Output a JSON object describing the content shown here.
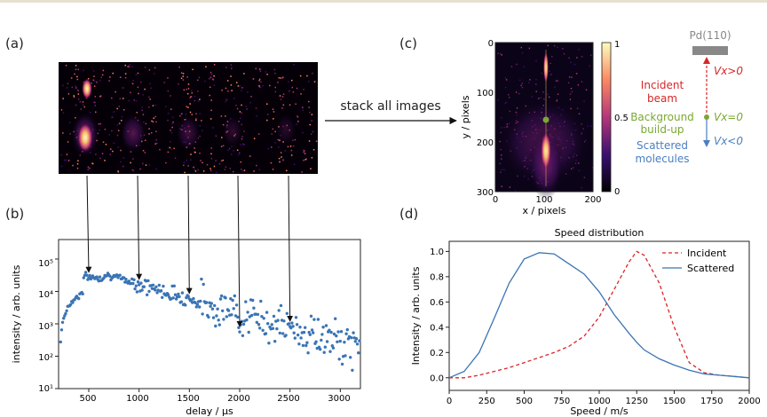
{
  "panels": {
    "a": "(a)",
    "b": "(b)",
    "c": "(c)",
    "d": "(d)"
  },
  "stack_text": "stack all images",
  "panel_b": {
    "xlabel": "delay / μs",
    "ylabel": "intensity / arb. units",
    "xticks": [
      "500",
      "1000",
      "1500",
      "2000",
      "2500",
      "3000"
    ],
    "yticks": [
      "10¹",
      "10²",
      "10³",
      "10⁴",
      "10⁵"
    ],
    "marker_delays": [
      500,
      1000,
      1500,
      2000,
      2500
    ]
  },
  "panel_c": {
    "xlabel": "x / pixels",
    "ylabel": "y / pixels",
    "xticks": [
      "0",
      "100",
      "200"
    ],
    "yticks": [
      "0",
      "100",
      "200",
      "300"
    ],
    "colorbar_ticks": [
      "1",
      "0.5",
      "0"
    ]
  },
  "schematic": {
    "surface": "Pd(110)",
    "incident": [
      "Incident",
      "beam"
    ],
    "background": [
      "Background",
      "build-up"
    ],
    "scattered": [
      "Scattered",
      "molecules"
    ],
    "vx_pos": "Vx>0",
    "vx_zero": "Vx=0",
    "vx_neg": "Vx<0",
    "colors": {
      "incident": "#d62728",
      "background": "#7aa832",
      "scattered": "#4a7fc0",
      "surface": "#888888"
    }
  },
  "chart_data": [
    {
      "type": "scatter",
      "xlabel": "delay / μs",
      "ylabel": "intensity / arb. units",
      "xlim": [
        200,
        3200
      ],
      "ylim": [
        10,
        400000
      ],
      "yscale": "log",
      "series": [
        {
          "color": "#3a74b4",
          "x": [],
          "values": []
        }
      ]
    },
    {
      "type": "line",
      "title": "Speed distribution",
      "xlabel": "Speed / m/s",
      "ylabel": "Intensity / arb. units",
      "xlim": [
        0,
        2000
      ],
      "ylim": [
        -0.1,
        1.08
      ],
      "xticks": [
        "0",
        "250",
        "500",
        "750",
        "1000",
        "1250",
        "1500",
        "1750",
        "2000"
      ],
      "yticks": [
        "0.0",
        "0.2",
        "0.4",
        "0.6",
        "0.8",
        "1.0"
      ],
      "legend": "top-right",
      "x": [
        0,
        100,
        200,
        300,
        400,
        500,
        600,
        700,
        800,
        900,
        1000,
        1100,
        1200,
        1250,
        1300,
        1400,
        1500,
        1600,
        1700,
        1800,
        1900,
        2000
      ],
      "series": [
        {
          "name": "Incident",
          "color": "#d62728",
          "dash": true,
          "values": [
            0.0,
            0.0,
            0.02,
            0.05,
            0.08,
            0.12,
            0.16,
            0.2,
            0.25,
            0.33,
            0.48,
            0.7,
            0.92,
            1.0,
            0.97,
            0.75,
            0.4,
            0.12,
            0.04,
            0.02,
            0.01,
            0.0
          ]
        },
        {
          "name": "Scattered",
          "color": "#3a74b4",
          "dash": false,
          "values": [
            0.0,
            0.05,
            0.2,
            0.47,
            0.75,
            0.94,
            0.99,
            0.98,
            0.9,
            0.82,
            0.68,
            0.5,
            0.35,
            0.28,
            0.22,
            0.15,
            0.1,
            0.06,
            0.03,
            0.02,
            0.01,
            0.0
          ]
        }
      ]
    }
  ]
}
